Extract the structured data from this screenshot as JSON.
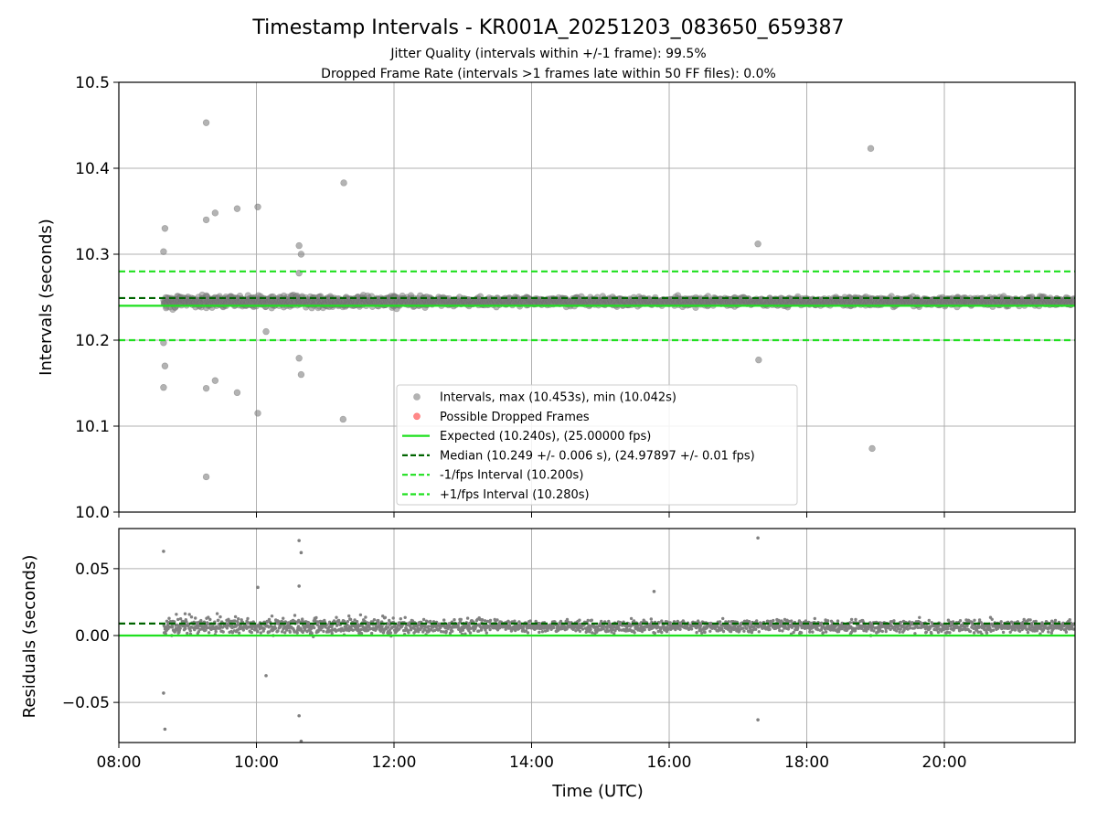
{
  "chart_data": {
    "type": "scatter",
    "title": "Timestamp Intervals - KR001A_20251203_083650_659387",
    "subtitles": [
      "Jitter Quality (intervals within +/-1 frame): 99.5%",
      "Dropped Frame Rate (intervals >1 frames late within 50 FF files): 0.0%"
    ],
    "colors": {
      "intervals": "#808080",
      "dropped": "#ff3b3b",
      "expected": "#1fe01f",
      "median": "#006400",
      "bounds": "#1fe01f",
      "grid": "#b0b0b0",
      "axis": "#000000"
    },
    "x_axis": {
      "label": "Time (UTC)",
      "range_hours": [
        8.0,
        21.9
      ],
      "ticks": [
        {
          "value": 8,
          "label": "08:00"
        },
        {
          "value": 10,
          "label": "10:00"
        },
        {
          "value": 12,
          "label": "12:00"
        },
        {
          "value": 14,
          "label": "14:00"
        },
        {
          "value": 16,
          "label": "16:00"
        },
        {
          "value": 18,
          "label": "18:00"
        },
        {
          "value": 20,
          "label": "20:00"
        }
      ]
    },
    "intervals_panel": {
      "ylabel": "Intervals (seconds)",
      "ylim": [
        10.0,
        10.5
      ],
      "yticks": [
        {
          "value": 10.0,
          "label": "10.0"
        },
        {
          "value": 10.1,
          "label": "10.1"
        },
        {
          "value": 10.2,
          "label": "10.2"
        },
        {
          "value": 10.3,
          "label": "10.3"
        },
        {
          "value": 10.4,
          "label": "10.4"
        },
        {
          "value": 10.5,
          "label": "10.5"
        }
      ],
      "expected": 10.24,
      "median": 10.249,
      "lower_bound": 10.2,
      "upper_bound": 10.28,
      "band": {
        "x_start": 8.65,
        "x_end": 21.9,
        "center": 10.247,
        "spread": 0.008
      },
      "outliers": [
        [
          8.65,
          10.303
        ],
        [
          8.67,
          10.33
        ],
        [
          8.65,
          10.197
        ],
        [
          8.67,
          10.17
        ],
        [
          8.65,
          10.145
        ],
        [
          9.27,
          10.453
        ],
        [
          9.27,
          10.34
        ],
        [
          9.4,
          10.348
        ],
        [
          9.72,
          10.353
        ],
        [
          10.02,
          10.355
        ],
        [
          9.27,
          10.144
        ],
        [
          9.4,
          10.153
        ],
        [
          9.72,
          10.139
        ],
        [
          10.02,
          10.115
        ],
        [
          9.27,
          10.041
        ],
        [
          10.62,
          10.31
        ],
        [
          10.65,
          10.3
        ],
        [
          10.62,
          10.278
        ],
        [
          10.62,
          10.179
        ],
        [
          10.65,
          10.16
        ],
        [
          10.14,
          10.21
        ],
        [
          11.27,
          10.383
        ],
        [
          11.26,
          10.108
        ],
        [
          17.29,
          10.312
        ],
        [
          17.3,
          10.177
        ],
        [
          18.93,
          10.423
        ],
        [
          18.95,
          10.074
        ]
      ]
    },
    "residuals_panel": {
      "ylabel": "Residuals (seconds)",
      "ylim": [
        -0.08,
        0.08
      ],
      "yticks": [
        {
          "value": 0.05,
          "label": "0.05"
        },
        {
          "value": 0.0,
          "label": "0.00"
        },
        {
          "value": -0.05,
          "label": "−0.05"
        }
      ],
      "zero_line": 0.0,
      "median_line": 0.009,
      "outliers": [
        [
          8.65,
          0.063
        ],
        [
          8.65,
          -0.043
        ],
        [
          8.67,
          -0.07
        ],
        [
          10.62,
          0.071
        ],
        [
          10.65,
          0.062
        ],
        [
          10.62,
          0.037
        ],
        [
          10.62,
          -0.06
        ],
        [
          10.65,
          -0.079
        ],
        [
          10.14,
          -0.03
        ],
        [
          17.29,
          0.073
        ],
        [
          17.29,
          -0.063
        ],
        [
          18.93,
          0.0
        ],
        [
          10.02,
          0.036
        ],
        [
          15.78,
          0.033
        ]
      ]
    },
    "legend": {
      "position": "lower-center",
      "entries": [
        {
          "type": "marker",
          "color": "#a0a0a0",
          "label": "Intervals, max (10.453s), min (10.042s)"
        },
        {
          "type": "marker",
          "color": "#ff6b6b",
          "label": "Possible Dropped Frames"
        },
        {
          "type": "line",
          "style": "solid",
          "color": "#1fe01f",
          "label": "Expected (10.240s), (25.00000 fps)"
        },
        {
          "type": "line",
          "style": "dashed",
          "color": "#006400",
          "label": "Median (10.249 +/- 0.006 s), (24.97897 +/- 0.01 fps)"
        },
        {
          "type": "line",
          "style": "dashed",
          "color": "#1fe01f",
          "label": "-1/fps Interval (10.200s)"
        },
        {
          "type": "line",
          "style": "dashed",
          "color": "#1fe01f",
          "label": "+1/fps Interval (10.280s)"
        }
      ]
    }
  }
}
